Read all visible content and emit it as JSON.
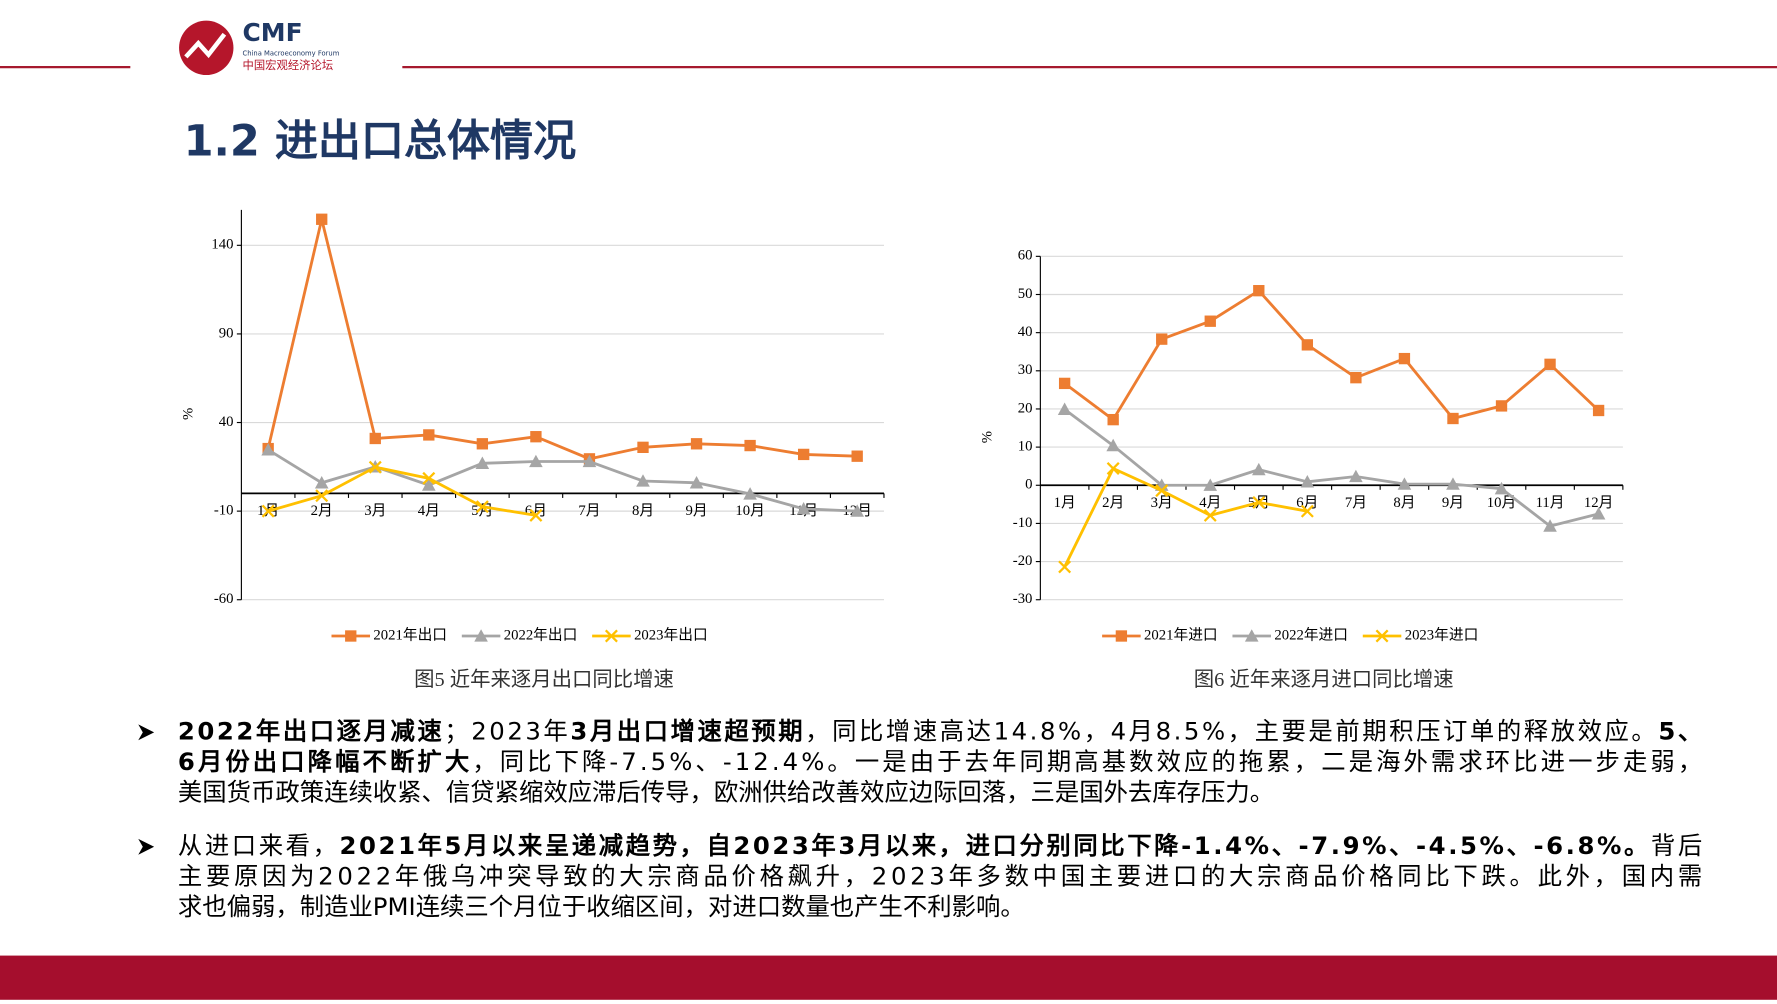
{
  "header": {
    "logo": "CMF",
    "logo_subtitle": "China Macroeconomy Forum",
    "logo_cn": "中国宏观经济论坛",
    "title": "1.2 进出口总体情况"
  },
  "chart_data": [
    {
      "type": "line",
      "caption": "图5  近年来逐月出口同比增速",
      "ylabel": "%",
      "categories": [
        "1月",
        "2月",
        "3月",
        "4月",
        "5月",
        "6月",
        "7月",
        "8月",
        "9月",
        "10月",
        "11月",
        "12月"
      ],
      "ylim": [
        -60,
        160
      ],
      "yticks": [
        -60,
        -10,
        40,
        90,
        140
      ],
      "grid": true,
      "series": [
        {
          "name": "2021年出口",
          "color": "#ED7D31",
          "marker": "square",
          "values": [
            25.3,
            154.7,
            31,
            33,
            28,
            32,
            19.5,
            26,
            28,
            27,
            22,
            21
          ]
        },
        {
          "name": "2022年出口",
          "color": "#A5A5A5",
          "marker": "triangle",
          "values": [
            24.6,
            6,
            15,
            4.7,
            17,
            18,
            18,
            7,
            6,
            -0.3,
            -8.7,
            -10
          ]
        },
        {
          "name": "2023年出口",
          "color": "#FFC000",
          "marker": "x",
          "values": [
            -10,
            -1.3,
            14.8,
            8.5,
            -7.5,
            -12.4,
            null,
            null,
            null,
            null,
            null,
            null
          ]
        }
      ]
    },
    {
      "type": "line",
      "caption": "图6  近年来逐月进口同比增速",
      "ylabel": "%",
      "categories": [
        "1月",
        "2月",
        "3月",
        "4月",
        "5月",
        "6月",
        "7月",
        "8月",
        "9月",
        "10月",
        "11月",
        "12月"
      ],
      "ylim": [
        -30,
        60
      ],
      "yticks": [
        -30,
        -20,
        -10,
        0,
        10,
        20,
        30,
        40,
        50,
        60
      ],
      "grid": true,
      "series": [
        {
          "name": "2021年进口",
          "color": "#ED7D31",
          "marker": "square",
          "values": [
            26.7,
            17.2,
            38.3,
            43,
            51,
            36.8,
            28.2,
            33.2,
            17.5,
            20.8,
            31.7,
            19.6
          ]
        },
        {
          "name": "2022年进口",
          "color": "#A5A5A5",
          "marker": "triangle",
          "values": [
            19.9,
            10.4,
            0,
            0,
            4.1,
            0.9,
            2.3,
            0.3,
            0.3,
            -0.9,
            -10.7,
            -7.5
          ]
        },
        {
          "name": "2023年进口",
          "color": "#FFC000",
          "marker": "x",
          "values": [
            -21.4,
            4.4,
            -1.4,
            -7.9,
            -4.5,
            -6.8,
            null,
            null,
            null,
            null,
            null,
            null
          ]
        }
      ]
    }
  ],
  "bullets": [
    {
      "lines": [
        [
          {
            "text": "2022年出口逐月减速",
            "bold": true
          },
          {
            "text": "；2023年",
            "bold": false
          },
          {
            "text": "3月出口增速超预期",
            "bold": true
          },
          {
            "text": "，同比增速高达14.8%，4月8.5%，主要是前期积压订单的释放效应。",
            "bold": false
          },
          {
            "text": "5、",
            "bold": true
          }
        ],
        [
          {
            "text": "6月份出口降幅不断扩大",
            "bold": true
          },
          {
            "text": "，同比下降-7.5%、-12.4%。一是由于去年同期高基数效应的拖累，二是海外需求环比进一步走弱，",
            "bold": false
          }
        ],
        [
          {
            "text": "美国货币政策连续收紧、信贷紧缩效应滞后传导，欧洲供给改善效应边际回落，三是国外去库存压力。",
            "bold": false
          }
        ]
      ]
    },
    {
      "lines": [
        [
          {
            "text": "从进口来看，",
            "bold": false
          },
          {
            "text": "2021年5月以来呈递减趋势，自2023年3月以来，进口分别同比下降-1.4%、-7.9%、-4.5%、-6.8%。",
            "bold": true
          },
          {
            "text": "背后",
            "bold": false
          }
        ],
        [
          {
            "text": "主要原因为2022年俄乌冲突导致的大宗商品价格飙升，2023年多数中国主要进口的大宗商品价格同比下跌。此外，国内需",
            "bold": false
          }
        ],
        [
          {
            "text": "求也偏弱，制造业PMI连续三个月位于收缩区间，对进口数量也产生不利影响。",
            "bold": false
          }
        ]
      ]
    }
  ]
}
